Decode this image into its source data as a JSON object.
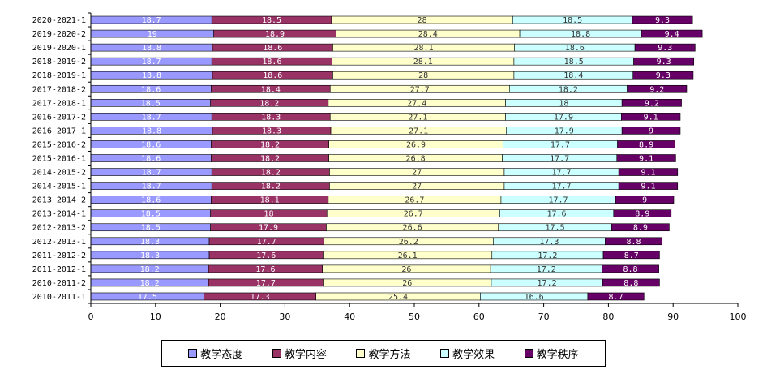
{
  "chart_data": {
    "type": "bar",
    "orientation": "horizontal",
    "stacked": true,
    "categories": [
      "2020-2021-1",
      "2019-2020-2",
      "2019-2020-1",
      "2018-2019-2",
      "2018-2019-1",
      "2017-2018-2",
      "2017-2018-1",
      "2016-2017-2",
      "2016-2017-1",
      "2015-2016-2",
      "2015-2016-1",
      "2014-2015-2",
      "2014-2015-1",
      "2013-2014-2",
      "2013-2014-1",
      "2012-2013-2",
      "2012-2013-1",
      "2011-2012-2",
      "2011-2012-1",
      "2010-2011-2",
      "2010-2011-1"
    ],
    "series": [
      {
        "name": "教学态度",
        "color": "#9999ff",
        "values": [
          18.7,
          19,
          18.8,
          18.7,
          18.8,
          18.6,
          18.5,
          18.7,
          18.8,
          18.6,
          18.6,
          18.7,
          18.7,
          18.6,
          18.5,
          18.5,
          18.3,
          18.3,
          18.2,
          18.2,
          17.5
        ]
      },
      {
        "name": "教学内容",
        "color": "#993366",
        "values": [
          18.5,
          18.9,
          18.6,
          18.6,
          18.6,
          18.4,
          18.2,
          18.3,
          18.3,
          18.2,
          18.2,
          18.2,
          18.2,
          18.1,
          18,
          17.9,
          17.7,
          17.6,
          17.6,
          17.7,
          17.3
        ]
      },
      {
        "name": "教学方法",
        "color": "#ffffcc",
        "values": [
          28,
          28.4,
          28.1,
          28.1,
          28,
          27.7,
          27.4,
          27.1,
          27.1,
          26.9,
          26.8,
          27,
          27,
          26.7,
          26.7,
          26.6,
          26.2,
          26.1,
          26,
          26,
          25.4
        ]
      },
      {
        "name": "教学效果",
        "color": "#ccffff",
        "values": [
          18.5,
          18.8,
          18.6,
          18.5,
          18.4,
          18.2,
          18,
          17.9,
          17.9,
          17.7,
          17.7,
          17.7,
          17.7,
          17.7,
          17.6,
          17.5,
          17.3,
          17.2,
          17.2,
          17.2,
          16.6
        ]
      },
      {
        "name": "教学秩序",
        "color": "#660066",
        "values": [
          9.3,
          9.4,
          9.3,
          9.3,
          9.3,
          9.2,
          9.2,
          9.1,
          9,
          8.9,
          9.1,
          9.1,
          9.1,
          9,
          8.9,
          8.9,
          8.8,
          8.7,
          8.8,
          8.8,
          8.7
        ]
      }
    ],
    "xlim": [
      0,
      100
    ],
    "xticks": [
      0,
      10,
      20,
      30,
      40,
      50,
      60,
      70,
      80,
      90,
      100
    ],
    "grid": false,
    "legend_position": "bottom",
    "title": "",
    "xlabel": "",
    "ylabel": ""
  }
}
